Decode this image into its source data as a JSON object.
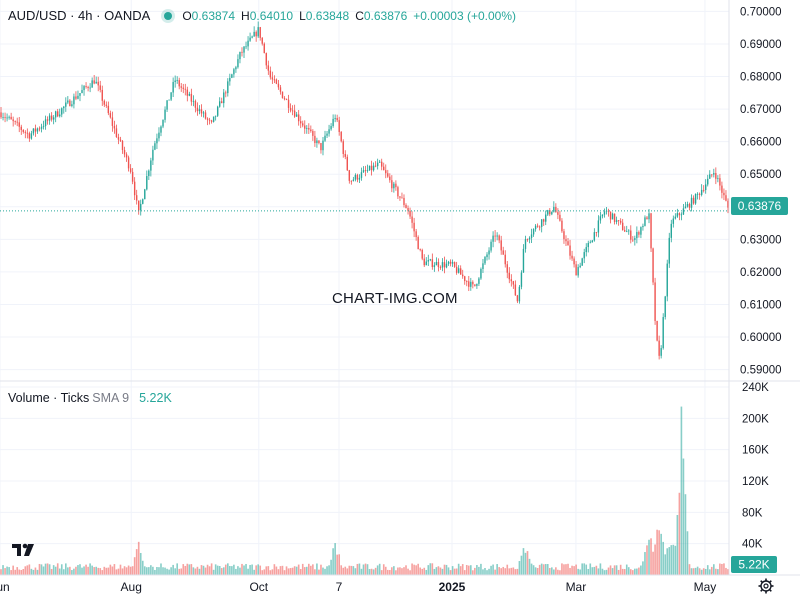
{
  "header": {
    "symbol": "AUD/USD · 4h · OANDA",
    "open_label": "O",
    "open": "0.63874",
    "high_label": "H",
    "high": "0.64010",
    "low_label": "L",
    "low": "0.63848",
    "close_label": "C",
    "close": "0.63876",
    "change": "+0.00003 (+0.00%)"
  },
  "volume_header": {
    "label": "Volume · Ticks",
    "sma": "SMA 9",
    "value": "5.22K"
  },
  "watermark": "CHART-IMG.COM",
  "colors": {
    "up": "#26a69a",
    "down": "#ef5350",
    "price_line": "#26a69a",
    "grid": "#f0f3fa"
  },
  "icons": {
    "logo": "tradingview-logo-icon",
    "settings": "gear-icon"
  },
  "chart_data": {
    "type": "candlestick",
    "price_axis": {
      "ticks": [
        "0.70000",
        "0.69000",
        "0.68000",
        "0.67000",
        "0.66000",
        "0.65000",
        "0.64000",
        "0.63000",
        "0.62000",
        "0.61000",
        "0.60000",
        "0.59000"
      ],
      "ylim": [
        0.5865,
        0.7035
      ],
      "last_price_label": "0.63876",
      "last_price": 0.63876
    },
    "volume_axis": {
      "ticks": [
        "240K",
        "200K",
        "160K",
        "120K",
        "80K",
        "40K"
      ],
      "ylim": [
        0,
        240000
      ],
      "last_label": "5.22K"
    },
    "time_axis": [
      "Jun",
      "Aug",
      "Oct",
      "7",
      "2025",
      "Mar",
      "May"
    ],
    "price_path": [
      [
        0,
        0.669
      ],
      [
        0.04,
        0.662
      ],
      [
        0.08,
        0.669
      ],
      [
        0.13,
        0.679
      ],
      [
        0.16,
        0.662
      ],
      [
        0.18,
        0.651
      ],
      [
        0.19,
        0.6375
      ],
      [
        0.21,
        0.658
      ],
      [
        0.24,
        0.679
      ],
      [
        0.29,
        0.665
      ],
      [
        0.33,
        0.687
      ],
      [
        0.355,
        0.6945
      ],
      [
        0.37,
        0.68
      ],
      [
        0.41,
        0.667
      ],
      [
        0.44,
        0.658
      ],
      [
        0.46,
        0.668
      ],
      [
        0.48,
        0.648
      ],
      [
        0.52,
        0.653
      ],
      [
        0.56,
        0.639
      ],
      [
        0.58,
        0.623
      ],
      [
        0.62,
        0.622
      ],
      [
        0.65,
        0.615
      ],
      [
        0.68,
        0.632
      ],
      [
        0.71,
        0.611
      ],
      [
        0.72,
        0.63
      ],
      [
        0.76,
        0.64
      ],
      [
        0.79,
        0.62
      ],
      [
        0.83,
        0.639
      ],
      [
        0.87,
        0.63
      ],
      [
        0.89,
        0.638
      ],
      [
        0.9,
        0.6
      ],
      [
        0.905,
        0.592
      ],
      [
        0.92,
        0.635
      ],
      [
        0.955,
        0.643
      ],
      [
        0.98,
        0.651
      ],
      [
        1.0,
        0.6388
      ]
    ],
    "volume_profile": {
      "base": 6000,
      "spikes": [
        [
          0.19,
          45000
        ],
        [
          0.46,
          50000
        ],
        [
          0.72,
          48000
        ],
        [
          0.89,
          75000
        ],
        [
          0.905,
          92000
        ],
        [
          0.935,
          215000
        ],
        [
          0.92,
          60000
        ]
      ]
    },
    "last_volume": 5220
  }
}
